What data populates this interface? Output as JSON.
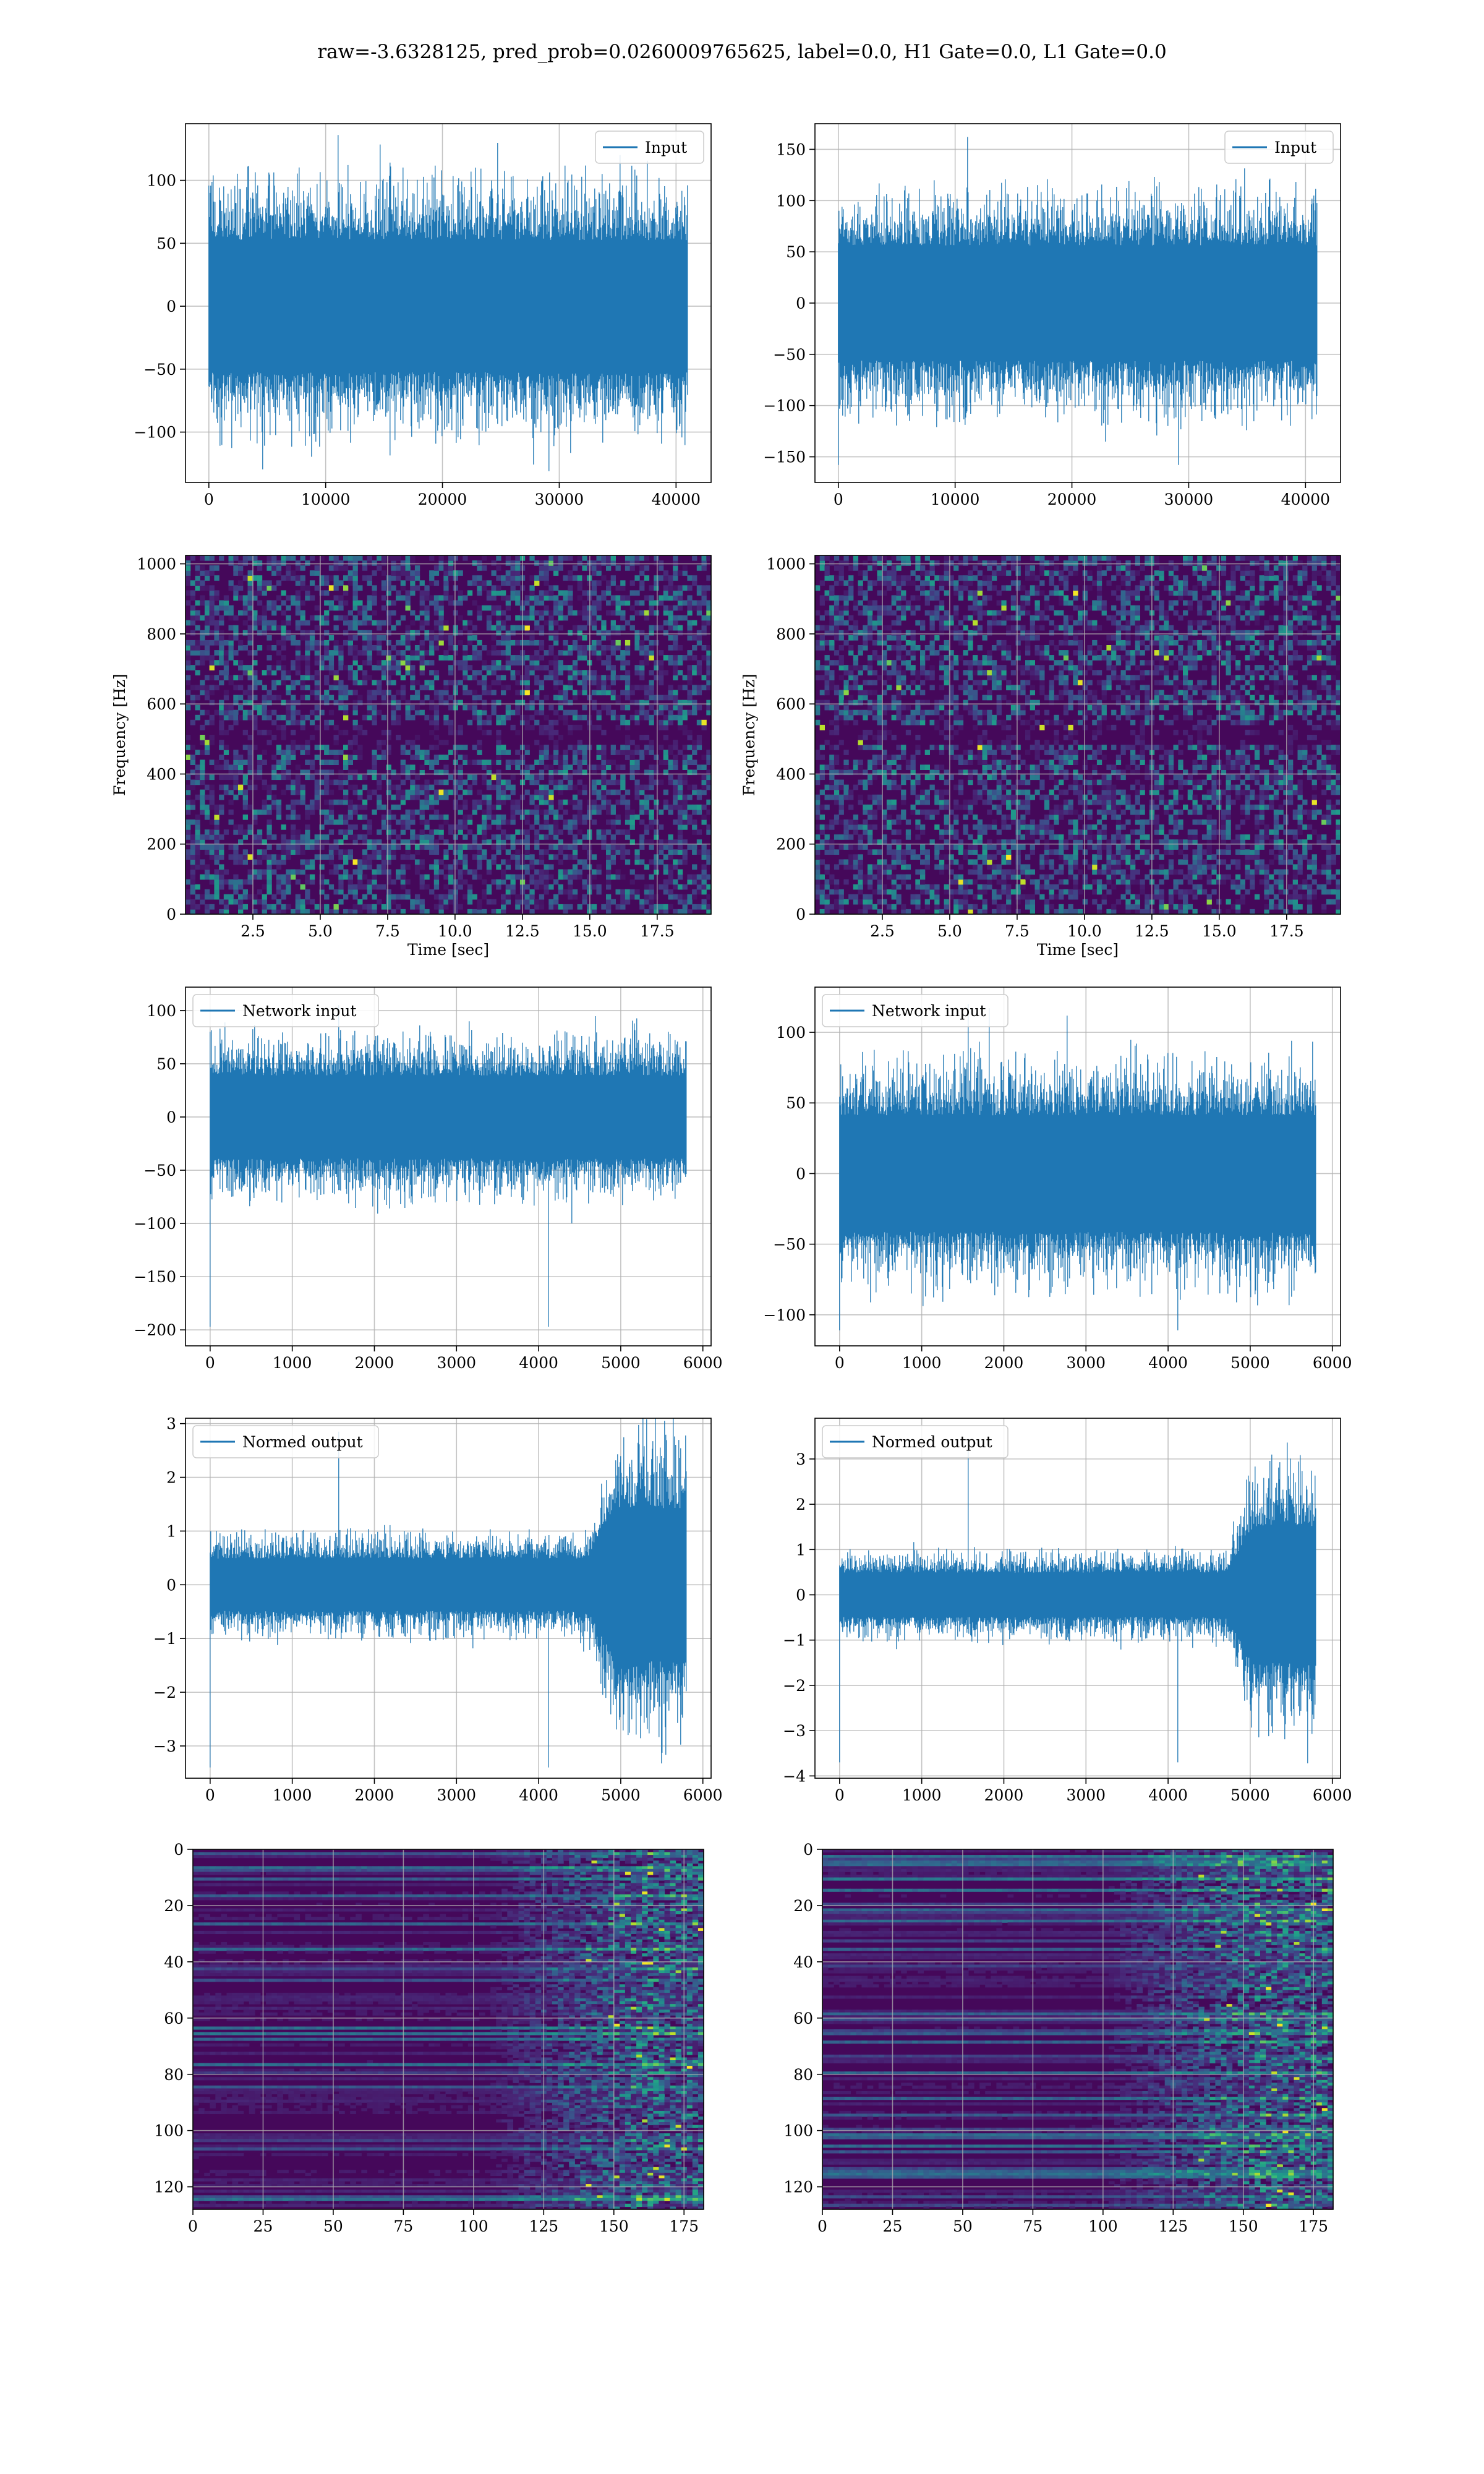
{
  "figure": {
    "title": "raw=-3.6328125, pred_prob=0.0260009765625, label=0.0, H1 Gate=0.0, L1 Gate=0.0",
    "accent": "#1f77b4",
    "grid_color": "#b0b0b0",
    "colormap": "viridis"
  },
  "chart_data": [
    {
      "id": "row1-left",
      "type": "line",
      "series": [
        {
          "name": "Input",
          "color": "#1f77b4"
        }
      ],
      "legend": "upper right",
      "xlim": [
        -2000,
        43000
      ],
      "ylim": [
        -140,
        145
      ],
      "xticks": [
        0,
        10000,
        20000,
        30000,
        40000
      ],
      "yticks": [
        -100,
        -50,
        0,
        50,
        100
      ],
      "signal": {
        "n_samples": 40960,
        "center": 0,
        "envelope": 70,
        "extremes": [
          136,
          -131
        ]
      },
      "xlabel": "",
      "ylabel": "",
      "grid": true
    },
    {
      "id": "row1-right",
      "type": "line",
      "series": [
        {
          "name": "Input",
          "color": "#1f77b4"
        }
      ],
      "legend": "upper right",
      "xlim": [
        -2000,
        43000
      ],
      "ylim": [
        -175,
        175
      ],
      "xticks": [
        0,
        10000,
        20000,
        30000,
        40000
      ],
      "yticks": [
        -150,
        -100,
        -50,
        0,
        50,
        100,
        150
      ],
      "signal": {
        "n_samples": 40960,
        "center": 0,
        "envelope": 75,
        "extremes": [
          162,
          -158
        ]
      },
      "xlabel": "",
      "ylabel": "",
      "grid": true
    },
    {
      "id": "row2-left",
      "type": "heatmap",
      "xlim": [
        0,
        19.5
      ],
      "ylim": [
        0,
        1024
      ],
      "xticks": [
        2.5,
        5.0,
        7.5,
        10.0,
        12.5,
        15.0,
        17.5
      ],
      "yticks": [
        0,
        200,
        400,
        600,
        800,
        1000
      ],
      "xlabel": "Time [sec]",
      "ylabel": "Frequency [Hz]",
      "colormap": "viridis",
      "dark_band_hz": 512,
      "grid": true
    },
    {
      "id": "row2-right",
      "type": "heatmap",
      "xlim": [
        0,
        19.5
      ],
      "ylim": [
        0,
        1024
      ],
      "xticks": [
        2.5,
        5.0,
        7.5,
        10.0,
        12.5,
        15.0,
        17.5
      ],
      "yticks": [
        0,
        200,
        400,
        600,
        800,
        1000
      ],
      "xlabel": "Time [sec]",
      "ylabel": "Frequency [Hz]",
      "colormap": "viridis",
      "dark_band_hz": 512,
      "grid": true
    },
    {
      "id": "row3-left",
      "type": "line",
      "series": [
        {
          "name": "Network input",
          "color": "#1f77b4"
        }
      ],
      "legend": "upper left",
      "xlim": [
        -300,
        6100
      ],
      "ylim": [
        -215,
        122
      ],
      "xticks": [
        0,
        1000,
        2000,
        3000,
        4000,
        5000,
        6000
      ],
      "yticks": [
        -200,
        -150,
        -100,
        -50,
        0,
        50,
        100
      ],
      "signal": {
        "n_samples": 5800,
        "center": 0,
        "envelope": 52,
        "extremes": [
          105,
          -197
        ]
      },
      "xlabel": "",
      "ylabel": "",
      "grid": true
    },
    {
      "id": "row3-right",
      "type": "line",
      "series": [
        {
          "name": "Network input",
          "color": "#1f77b4"
        }
      ],
      "legend": "upper left",
      "xlim": [
        -300,
        6100
      ],
      "ylim": [
        -122,
        132
      ],
      "xticks": [
        0,
        1000,
        2000,
        3000,
        4000,
        5000,
        6000
      ],
      "yticks": [
        -100,
        -50,
        0,
        50,
        100
      ],
      "signal": {
        "n_samples": 5800,
        "center": 0,
        "envelope": 55,
        "extremes": [
          120,
          -111
        ]
      },
      "xlabel": "",
      "ylabel": "",
      "grid": true
    },
    {
      "id": "row4-left",
      "type": "line",
      "series": [
        {
          "name": "Normed output",
          "color": "#1f77b4"
        }
      ],
      "legend": "upper left",
      "xlim": [
        -300,
        6100
      ],
      "ylim": [
        -3.6,
        3.1
      ],
      "xticks": [
        0,
        1000,
        2000,
        3000,
        4000,
        5000,
        6000
      ],
      "yticks": [
        -3,
        -2,
        -1,
        0,
        1,
        2,
        3
      ],
      "signal": {
        "n_samples": 5800,
        "center": 0,
        "envelope": 0.65,
        "burst_from": 4600,
        "burst_envelope": 1.9,
        "extremes": [
          2.85,
          -3.4
        ]
      },
      "xlabel": "",
      "ylabel": "",
      "grid": true
    },
    {
      "id": "row4-right",
      "type": "line",
      "series": [
        {
          "name": "Normed output",
          "color": "#1f77b4"
        }
      ],
      "legend": "upper left",
      "xlim": [
        -300,
        6100
      ],
      "ylim": [
        -4.05,
        3.9
      ],
      "xticks": [
        0,
        1000,
        2000,
        3000,
        4000,
        5000,
        6000
      ],
      "yticks": [
        -4,
        -3,
        -2,
        -1,
        0,
        1,
        2,
        3
      ],
      "signal": {
        "n_samples": 5800,
        "center": 0,
        "envelope": 0.65,
        "burst_from": 4700,
        "burst_envelope": 2.0,
        "extremes": [
          3.45,
          -3.7
        ]
      },
      "xlabel": "",
      "ylabel": "",
      "grid": true
    },
    {
      "id": "row5-left",
      "type": "heatmap",
      "xlim": [
        0,
        182
      ],
      "ylim": [
        128,
        0
      ],
      "xticks": [
        0,
        25,
        50,
        75,
        100,
        125,
        150,
        175
      ],
      "yticks": [
        0,
        20,
        40,
        60,
        80,
        100,
        120
      ],
      "colormap": "viridis",
      "activity_from": 105,
      "xlabel": "",
      "ylabel": "",
      "grid": true
    },
    {
      "id": "row5-right",
      "type": "heatmap",
      "xlim": [
        0,
        182
      ],
      "ylim": [
        128,
        0
      ],
      "xticks": [
        0,
        25,
        50,
        75,
        100,
        125,
        150,
        175
      ],
      "yticks": [
        0,
        20,
        40,
        60,
        80,
        100,
        120
      ],
      "colormap": "viridis",
      "activity_from": 100,
      "xlabel": "",
      "ylabel": "",
      "grid": true
    }
  ]
}
